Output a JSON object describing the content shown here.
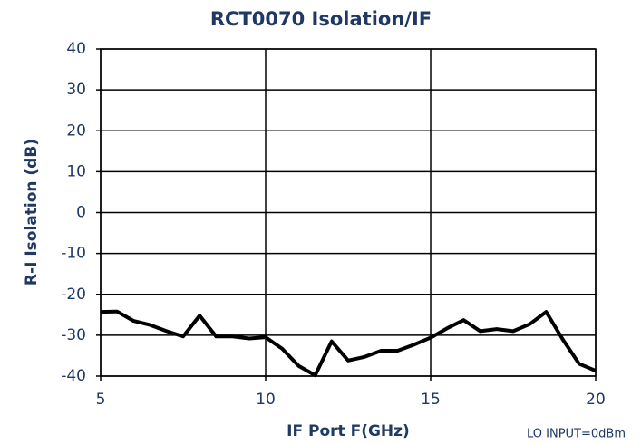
{
  "chart_data": {
    "type": "line",
    "title": "RCT0070 Isolation/IF",
    "xlabel": "IF Port F(GHz)",
    "ylabel": "R-I Isolation (dB)",
    "annotation": "LO INPUT=0dBm",
    "x": [
      5,
      5.5,
      6,
      6.5,
      7,
      7.5,
      8,
      8.5,
      9,
      9.5,
      10,
      10.5,
      11,
      11.5,
      12,
      12.5,
      13,
      13.5,
      14,
      14.5,
      15,
      15.5,
      16,
      16.5,
      17,
      17.5,
      18,
      18.5,
      19,
      19.5,
      20
    ],
    "series": [
      {
        "name": "R-I Isolation",
        "color": "#000000",
        "values": [
          -24.3,
          -24.2,
          -26.5,
          -27.5,
          -29,
          -30.3,
          -25.2,
          -30.3,
          -30.3,
          -30.8,
          -30.5,
          -33.3,
          -37.5,
          -39.8,
          -31.5,
          -36.2,
          -35.3,
          -33.8,
          -33.8,
          -32.3,
          -30.6,
          -28.3,
          -26.3,
          -29,
          -28.5,
          -29,
          -27.3,
          -24.3,
          -31,
          -37,
          -38.7
        ]
      }
    ],
    "xlim": [
      5,
      20
    ],
    "xticks": [
      5,
      10,
      15,
      20
    ],
    "ylim": [
      -40,
      40
    ],
    "yticks": [
      -40,
      -30,
      -20,
      -10,
      0,
      10,
      20,
      30,
      40
    ],
    "grid": true
  }
}
